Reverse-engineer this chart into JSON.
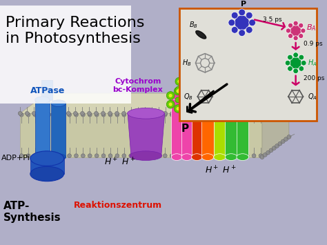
{
  "bg_color": "#b0afc8",
  "title_text": "Primary Reactions\nin Photosynthesis",
  "title_color": "#000000",
  "title_fontsize": 16,
  "atp_label": "ATPase",
  "atp_color": "#1155bb",
  "cytochrom_label": "Cytochrom\nbc-Komplex",
  "cytochrom_color": "#9900cc",
  "adp_label": "ADP+Pi",
  "atp_synthesis": "ATP-\nSynthesis",
  "reaktion_label": "Reaktionszentrum",
  "reaktion_color": "#dd1100",
  "inset_bg": "#e0dfd8",
  "inset_border": "#cc5500",
  "inset_P_color": "#3333bb",
  "inset_BA_color": "#cc0055",
  "inset_HA_color": "#009933",
  "inset_arrow_color": "#cc0066",
  "inset_time1": "3.5 ps",
  "inset_time2": "0.9 ps",
  "inset_time3": "200 ps",
  "mem_top_color": "#d5d4b5",
  "mem_face_color": "#c8c8a5",
  "mem_right_color": "#b5b4a0",
  "lipid_head_color": "#909090",
  "lipid_tail_color": "#808080"
}
